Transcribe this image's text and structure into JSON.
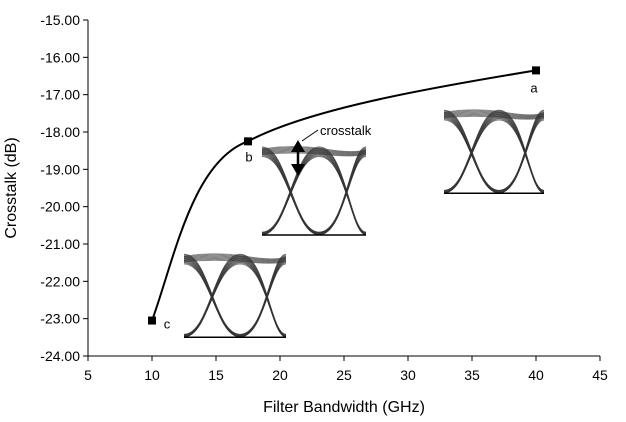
{
  "chart_data": {
    "type": "line",
    "title": "",
    "xlabel": "Filter Bandwidth (GHz)",
    "ylabel": "Crosstalk (dB)",
    "xlim": [
      5,
      45
    ],
    "ylim": [
      -24,
      -15
    ],
    "xticks": [
      "5",
      "10",
      "15",
      "20",
      "25",
      "30",
      "35",
      "40",
      "45"
    ],
    "yticks": [
      "-15.00",
      "-16.00",
      "-17.00",
      "-18.00",
      "-19.00",
      "-20.00",
      "-21.00",
      "-22.00",
      "-23.00",
      "-24.00"
    ],
    "grid": false,
    "legend": "none",
    "series": [
      {
        "points": [
          {
            "x": 10,
            "y": -23.05,
            "label": "c"
          },
          {
            "x": 17.5,
            "y": -18.25,
            "label": "b"
          },
          {
            "x": 40,
            "y": -16.35,
            "label": "a"
          }
        ]
      }
    ],
    "annotations": {
      "crosstalk_label": "crosstalk"
    },
    "eye_diagram_insets": [
      {
        "name": "eye-diagram-c",
        "near_point": "c"
      },
      {
        "name": "eye-diagram-b",
        "near_point": "b"
      },
      {
        "name": "eye-diagram-a",
        "near_point": "a"
      }
    ],
    "colors": {
      "line": "#000000",
      "marker": "#000000",
      "eye_trace": "#333333"
    }
  }
}
